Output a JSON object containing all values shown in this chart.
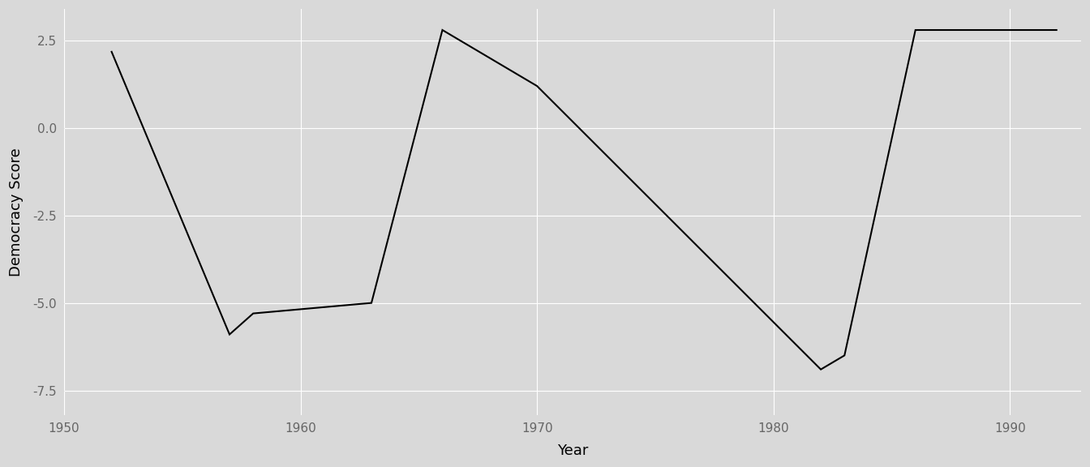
{
  "years": [
    1952,
    1957,
    1958,
    1963,
    1966,
    1970,
    1982,
    1983,
    1986,
    1992
  ],
  "scores": [
    2.2,
    -5.9,
    -5.3,
    -5.0,
    2.8,
    1.2,
    -6.9,
    -6.5,
    2.8,
    2.8
  ],
  "xlim": [
    1950,
    1993
  ],
  "ylim": [
    -8.2,
    3.4
  ],
  "xticks": [
    1950,
    1960,
    1970,
    1980,
    1990
  ],
  "yticks": [
    -7.5,
    -5.0,
    -2.5,
    0.0,
    2.5
  ],
  "xlabel": "Year",
  "ylabel": "Democracy Score",
  "line_color": "#000000",
  "line_width": 1.5,
  "bg_color": "#d9d9d9",
  "panel_bg": "#d9d9d9",
  "grid_color": "#ffffff",
  "axis_label_fontsize": 13,
  "tick_fontsize": 11
}
